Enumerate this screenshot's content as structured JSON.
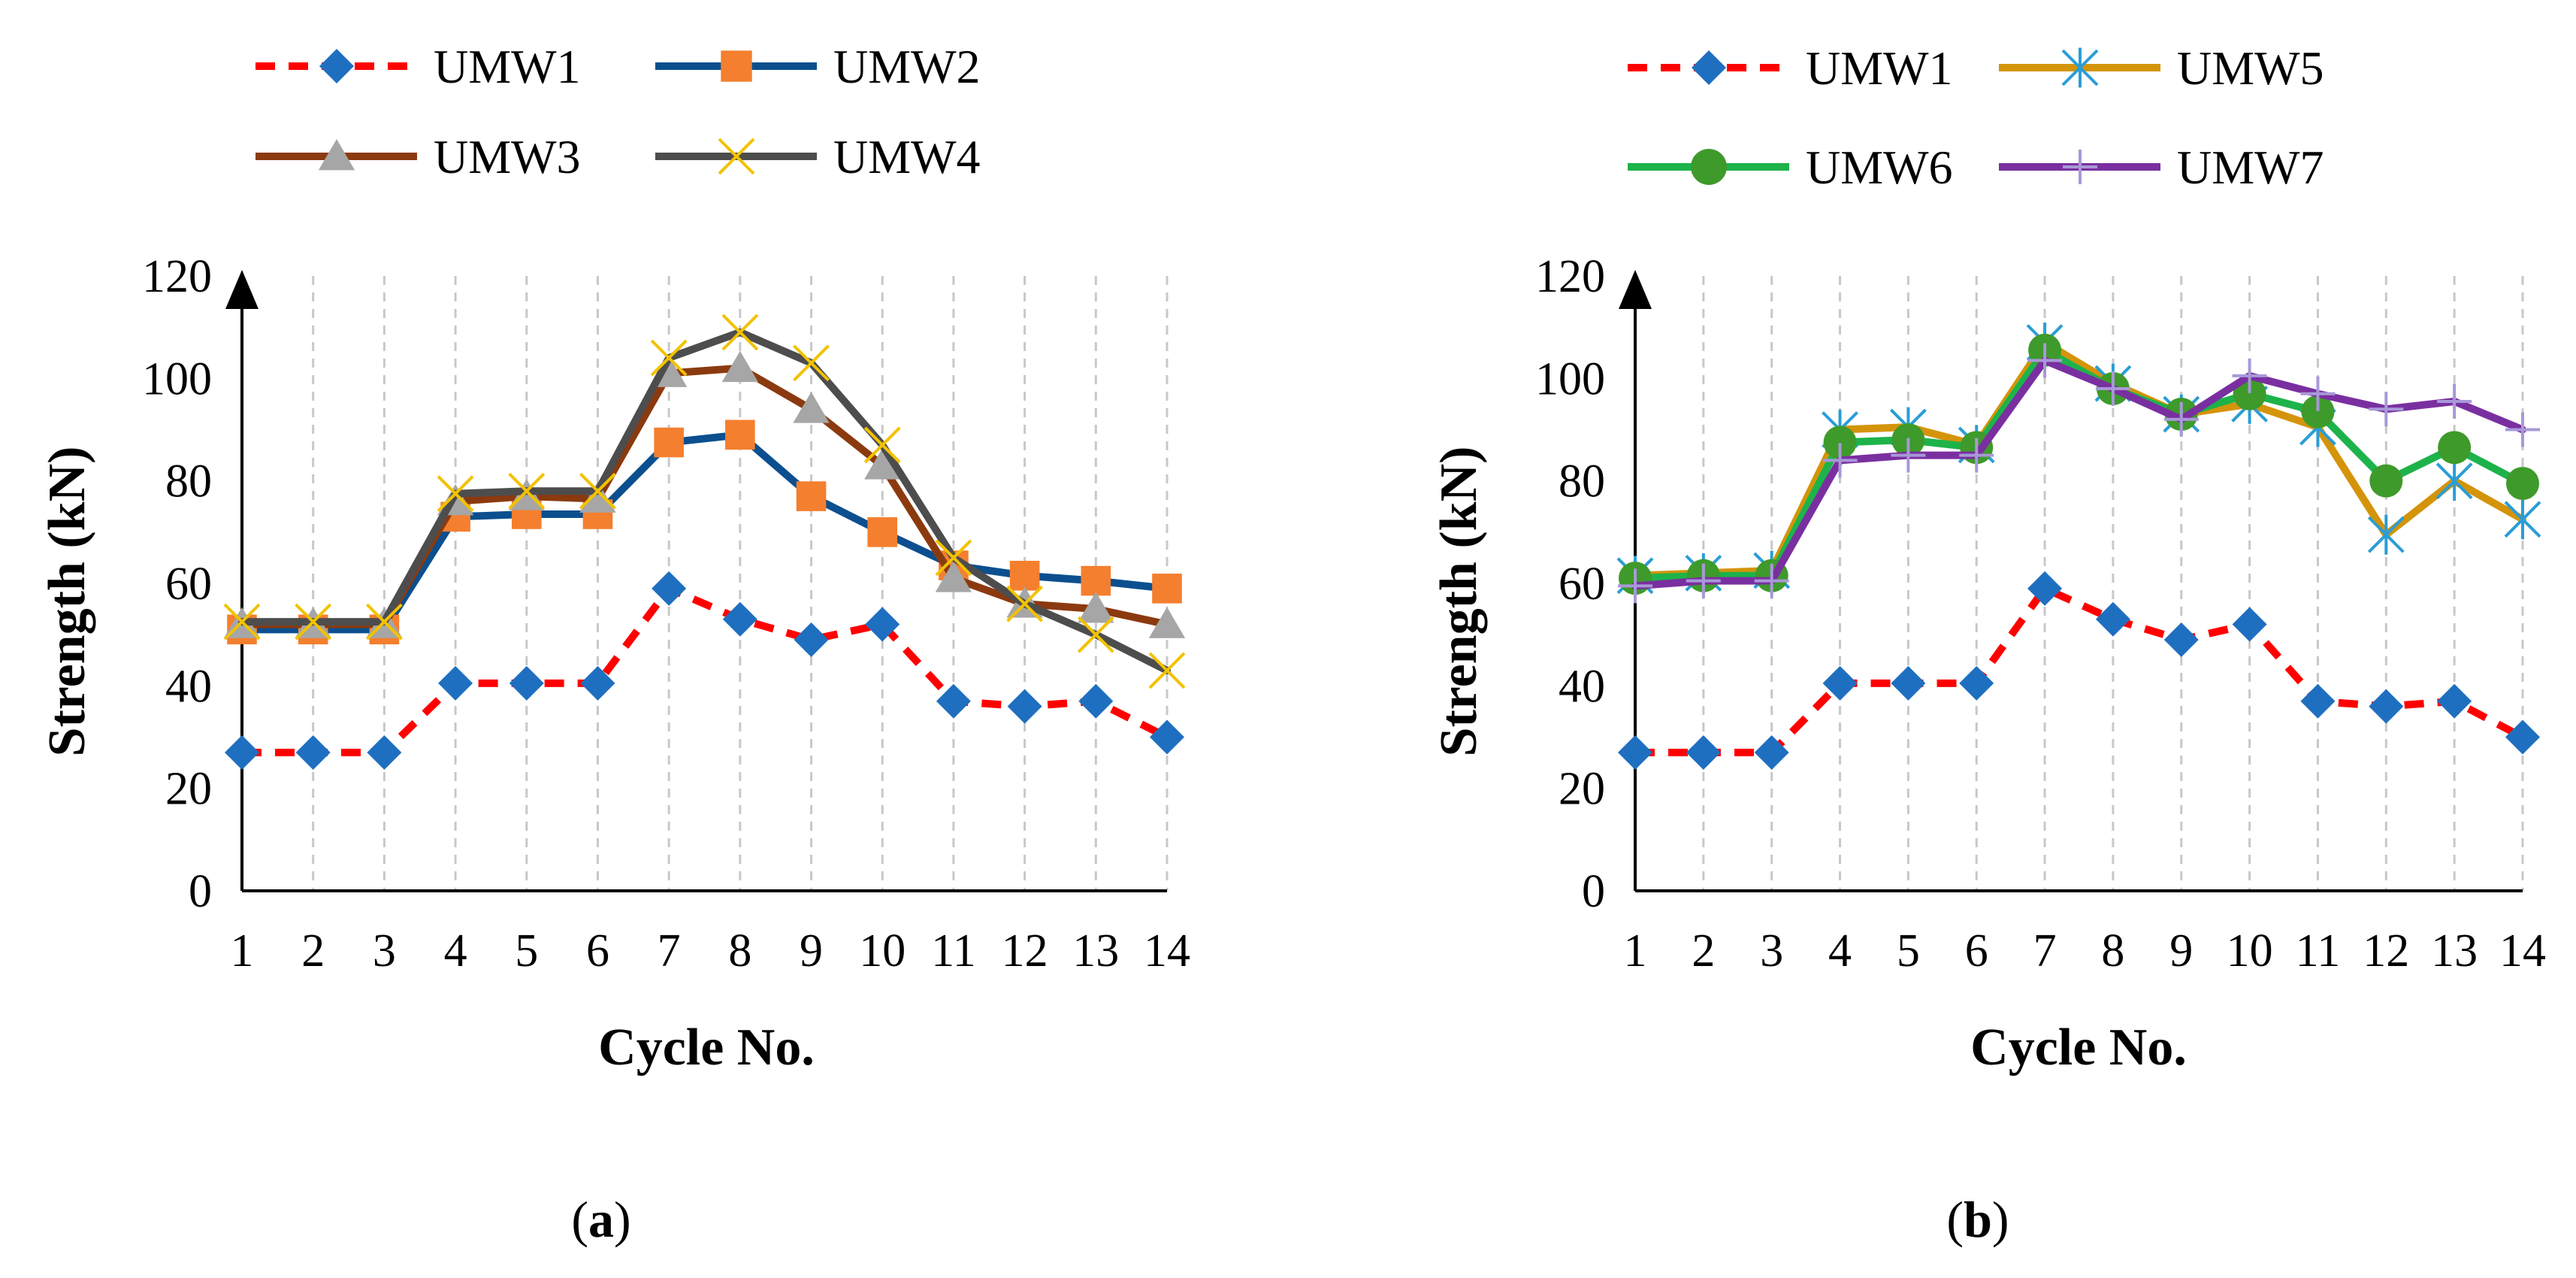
{
  "chart_data": [
    {
      "type": "line",
      "panel_label": "a",
      "xlabel": "Cycle No.",
      "ylabel": "Strength (kN)",
      "ylim": [
        0,
        120
      ],
      "yticks": [
        0,
        20,
        40,
        60,
        80,
        100,
        120
      ],
      "legend_position": "top",
      "categories": [
        "1",
        "2",
        "3",
        "4",
        "5",
        "6",
        "7",
        "8",
        "9",
        "10",
        "11",
        "12",
        "13",
        "14"
      ],
      "series": [
        {
          "name": "UMW1",
          "color": "#ff0000",
          "marker": "diamond",
          "marker_color": "#1f6fc0",
          "dashed": true,
          "values": [
            27,
            27,
            27,
            40.5,
            40.5,
            40.5,
            59,
            53,
            49,
            52,
            37,
            36,
            37,
            30
          ]
        },
        {
          "name": "UMW2",
          "color": "#0b4f8f",
          "marker": "square",
          "marker_color": "#f47f2e",
          "dashed": false,
          "values": [
            51,
            51,
            51,
            73,
            73.5,
            73.5,
            87.5,
            89,
            77,
            70,
            63.5,
            61.5,
            60.5,
            59
          ]
        },
        {
          "name": "UMW3",
          "color": "#8b3a0f",
          "marker": "triangle",
          "marker_color": "#a6a6a6",
          "dashed": false,
          "values": [
            52,
            52,
            52,
            76,
            77,
            76.5,
            101,
            102,
            94,
            83,
            61,
            56,
            55,
            52
          ]
        },
        {
          "name": "UMW4",
          "color": "#4d4d4d",
          "marker": "x",
          "marker_color": "#f2c200",
          "dashed": false,
          "values": [
            52.5,
            52.5,
            52.5,
            77.5,
            78,
            78,
            104,
            109,
            103,
            87,
            65,
            56,
            50,
            43
          ]
        }
      ]
    },
    {
      "type": "line",
      "panel_label": "b",
      "xlabel": "Cycle No.",
      "ylabel": "Strength (kN)",
      "ylim": [
        0,
        120
      ],
      "yticks": [
        0,
        20,
        40,
        60,
        80,
        100,
        120
      ],
      "legend_position": "top",
      "categories": [
        "1",
        "2",
        "3",
        "4",
        "5",
        "6",
        "7",
        "8",
        "9",
        "10",
        "11",
        "12",
        "13",
        "14"
      ],
      "series": [
        {
          "name": "UMW1",
          "color": "#ff0000",
          "marker": "diamond",
          "marker_color": "#1f6fc0",
          "dashed": true,
          "values": [
            27,
            27,
            27,
            40.5,
            40.5,
            40.5,
            59,
            53,
            49,
            52,
            37,
            36,
            37,
            30
          ]
        },
        {
          "name": "UMW5",
          "color": "#d4940a",
          "marker": "asterisk",
          "marker_color": "#2a9dd6",
          "dashed": false,
          "values": [
            61.5,
            62,
            62.5,
            90,
            90.5,
            87,
            107,
            99,
            93,
            95,
            90.5,
            69.5,
            80,
            72.5
          ]
        },
        {
          "name": "UMW6",
          "color": "#1db34a",
          "marker": "circle",
          "marker_color": "#3e9a2a",
          "dashed": false,
          "values": [
            61,
            61.5,
            61.5,
            87.5,
            88,
            86.5,
            105.5,
            98,
            93,
            97,
            93.5,
            80,
            86.5,
            79.5
          ]
        },
        {
          "name": "UMW7",
          "color": "#7a2fa0",
          "marker": "plus",
          "marker_color": "#a898d8",
          "dashed": false,
          "values": [
            59.5,
            60.5,
            60.5,
            84,
            85,
            85,
            103.5,
            98,
            92,
            100.5,
            97,
            94,
            95.5,
            90
          ]
        }
      ]
    }
  ]
}
